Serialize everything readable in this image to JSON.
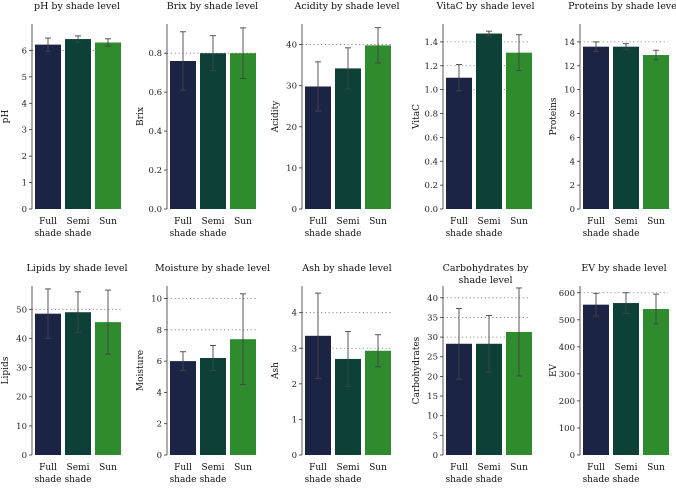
{
  "chart_data": {
    "type": "bar",
    "categories": [
      [
        "Full",
        "shade"
      ],
      [
        "Semi",
        "shade"
      ],
      [
        "Sun"
      ]
    ],
    "colors": [
      "#1b2444",
      "#0d4037",
      "#2e8b2e"
    ],
    "charts": [
      {
        "title": [
          "pH by shade level"
        ],
        "ylabel": "pH",
        "ylim": [
          0,
          7
        ],
        "yticks": [
          0,
          1,
          2,
          3,
          4,
          5,
          6
        ],
        "ytick_labels": [
          "0",
          "1",
          "2",
          "3",
          "4",
          "5",
          "6"
        ],
        "gridlines": [
          6
        ],
        "values": [
          6.22,
          6.43,
          6.3
        ],
        "errors": [
          0.25,
          0.12,
          0.14
        ]
      },
      {
        "title": [
          "Brix by shade level"
        ],
        "ylabel": "Brix",
        "ylim": [
          0,
          0.95
        ],
        "yticks": [
          0,
          0.2,
          0.4,
          0.6,
          0.8
        ],
        "ytick_labels": [
          "0.0",
          "0.2",
          "0.4",
          "0.6",
          "0.8"
        ],
        "gridlines": [
          0.8
        ],
        "values": [
          0.76,
          0.8,
          0.8
        ],
        "errors": [
          0.15,
          0.09,
          0.13
        ]
      },
      {
        "title": [
          "Acidity by shade level"
        ],
        "ylabel": "Acidity",
        "ylim": [
          0,
          45
        ],
        "yticks": [
          0,
          10,
          20,
          30,
          40
        ],
        "ytick_labels": [
          "0",
          "10",
          "20",
          "30",
          "40"
        ],
        "gridlines": [
          40
        ],
        "values": [
          29.8,
          34.2,
          39.8
        ],
        "errors": [
          6.0,
          5.0,
          4.3
        ]
      },
      {
        "title": [
          "VitaC by shade level"
        ],
        "ylabel": "VitaC",
        "ylim": [
          0,
          1.55
        ],
        "yticks": [
          0,
          0.2,
          0.4,
          0.6,
          0.8,
          1.0,
          1.2,
          1.4
        ],
        "ytick_labels": [
          "0.0",
          "0.2",
          "0.4",
          "0.6",
          "0.8",
          "1.0",
          "1.2",
          "1.4"
        ],
        "gridlines": [
          1.0,
          1.2,
          1.4
        ],
        "values": [
          1.1,
          1.47,
          1.31
        ],
        "errors": [
          0.11,
          0.02,
          0.15
        ]
      },
      {
        "title": [
          "Proteins by shade level"
        ],
        "ylabel": "Proteins",
        "ylim": [
          0,
          15.5
        ],
        "yticks": [
          0,
          2,
          4,
          6,
          8,
          10,
          12,
          14
        ],
        "ytick_labels": [
          "0",
          "2",
          "4",
          "6",
          "8",
          "10",
          "12",
          "14"
        ],
        "gridlines": [
          14
        ],
        "values": [
          13.6,
          13.6,
          12.9
        ],
        "errors": [
          0.4,
          0.25,
          0.4
        ]
      },
      {
        "title": [
          "Lipids by shade level"
        ],
        "ylabel": "Lipids",
        "ylim": [
          0,
          58
        ],
        "yticks": [
          0,
          10,
          20,
          30,
          40,
          50
        ],
        "ytick_labels": [
          "0",
          "10",
          "20",
          "30",
          "40",
          "50"
        ],
        "gridlines": [
          50
        ],
        "values": [
          48.5,
          49.0,
          45.6
        ],
        "errors": [
          8.5,
          7.0,
          11.0
        ]
      },
      {
        "title": [
          "Moisture by shade level"
        ],
        "ylabel": "Moisture",
        "ylim": [
          0,
          10.8
        ],
        "yticks": [
          0,
          2,
          4,
          6,
          8,
          10
        ],
        "ytick_labels": [
          "0",
          "2",
          "4",
          "6",
          "8",
          "10"
        ],
        "gridlines": [
          8,
          10
        ],
        "values": [
          6.0,
          6.2,
          7.4
        ],
        "errors": [
          0.6,
          0.8,
          2.9
        ]
      },
      {
        "title": [
          "Ash by shade level"
        ],
        "ylabel": "Ash",
        "ylim": [
          0,
          4.75
        ],
        "yticks": [
          0,
          1,
          2,
          3,
          4
        ],
        "ytick_labels": [
          "0",
          "1",
          "2",
          "3",
          "4"
        ],
        "gridlines": [
          3,
          4
        ],
        "values": [
          3.35,
          2.7,
          2.93
        ],
        "errors": [
          1.2,
          0.77,
          0.45
        ]
      },
      {
        "title": [
          "Carbohydrates by",
          "shade level"
        ],
        "ylabel": "Carbohydrates",
        "ylim": [
          0,
          43
        ],
        "yticks": [
          0,
          5,
          10,
          15,
          20,
          25,
          30,
          35,
          40
        ],
        "ytick_labels": [
          "0",
          "5",
          "10",
          "15",
          "20",
          "25",
          "30",
          "35",
          "40"
        ],
        "gridlines": [
          30,
          35,
          40
        ],
        "values": [
          28.3,
          28.3,
          31.3
        ],
        "errors": [
          9.0,
          7.2,
          11.2
        ]
      },
      {
        "title": [
          "EV by shade level"
        ],
        "ylabel": "EV",
        "ylim": [
          0,
          625
        ],
        "yticks": [
          0,
          100,
          200,
          300,
          400,
          500,
          600
        ],
        "ytick_labels": [
          "0",
          "100",
          "200",
          "300",
          "400",
          "500",
          "600"
        ],
        "gridlines": [
          600
        ],
        "values": [
          556,
          562,
          540
        ],
        "errors": [
          42,
          38,
          55
        ]
      }
    ]
  }
}
